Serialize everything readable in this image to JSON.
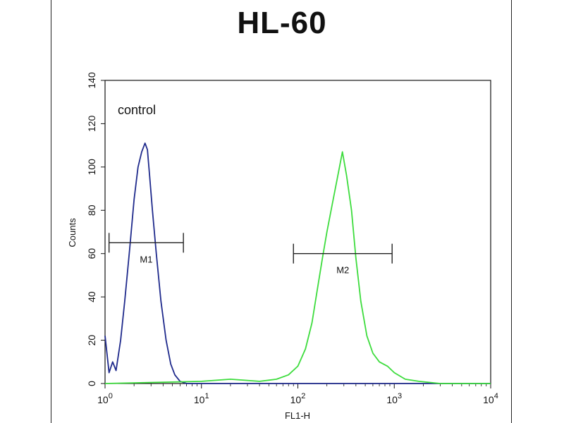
{
  "chart_data": {
    "type": "line",
    "title": "HL-60",
    "xlabel": "FL1-H",
    "ylabel": "Counts",
    "x_scale": "log",
    "xlim": [
      1,
      10000
    ],
    "ylim": [
      0,
      140
    ],
    "x_ticks": [
      {
        "value": 1,
        "base": "10",
        "exp": "0"
      },
      {
        "value": 10,
        "base": "10",
        "exp": "1"
      },
      {
        "value": 100,
        "base": "10",
        "exp": "2"
      },
      {
        "value": 1000,
        "base": "10",
        "exp": "3"
      },
      {
        "value": 10000,
        "base": "10",
        "exp": "4"
      }
    ],
    "y_ticks": [
      0,
      20,
      40,
      60,
      80,
      100,
      120,
      140
    ],
    "annotation": "control",
    "series": [
      {
        "color": "#1f2a8c",
        "x": [
          1.0,
          1.1,
          1.2,
          1.3,
          1.45,
          1.6,
          1.8,
          2.0,
          2.2,
          2.4,
          2.6,
          2.75,
          2.9,
          3.1,
          3.4,
          3.8,
          4.3,
          4.8,
          5.3,
          6.0,
          7.0,
          8.5,
          10,
          100,
          1000,
          10000
        ],
        "y": [
          22,
          5,
          10,
          6,
          20,
          38,
          62,
          85,
          100,
          107,
          111,
          108,
          96,
          80,
          60,
          38,
          20,
          9,
          4,
          1,
          0,
          0,
          0,
          0,
          0,
          0
        ]
      },
      {
        "color": "#3ddc3d",
        "x": [
          1,
          10,
          20,
          40,
          60,
          80,
          100,
          120,
          140,
          160,
          180,
          200,
          230,
          260,
          290,
          320,
          360,
          400,
          450,
          520,
          600,
          700,
          850,
          1000,
          1300,
          1800,
          3000,
          10000
        ],
        "y": [
          0,
          1,
          2,
          1,
          2,
          4,
          8,
          16,
          28,
          44,
          58,
          70,
          84,
          96,
          107,
          96,
          80,
          58,
          38,
          22,
          14,
          10,
          8,
          5,
          2,
          1,
          0,
          0
        ]
      }
    ],
    "markers": [
      {
        "label": "M1",
        "x_start": 1.1,
        "x_end": 6.5,
        "y": 65
      },
      {
        "label": "M2",
        "x_start": 90,
        "x_end": 950,
        "y": 60
      }
    ],
    "grid": false
  }
}
